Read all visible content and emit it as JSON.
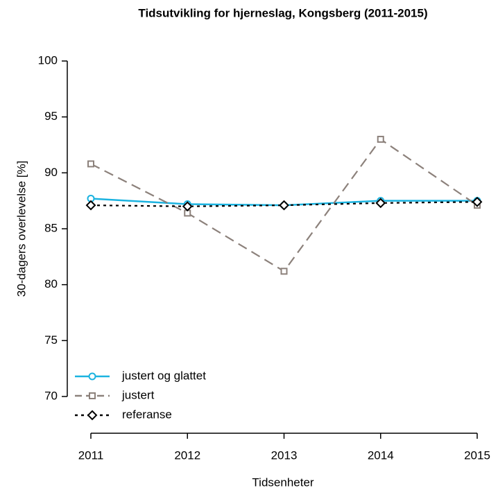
{
  "chart_data": {
    "type": "line",
    "title": "Tidsutvikling for hjerneslag, Kongsberg (2011-2015)",
    "x_label": "Tidsenheter",
    "y_label": "30-dagers overlevelse [%]",
    "x": [
      2011,
      2012,
      2013,
      2014,
      2015
    ],
    "xlim": [
      2011,
      2015
    ],
    "xticks": [
      2011,
      2012,
      2013,
      2014,
      2015
    ],
    "ylim": [
      70,
      100
    ],
    "yticks": [
      70,
      75,
      80,
      85,
      90,
      95,
      100
    ],
    "legend": "bottom-left",
    "series": [
      {
        "name": "justert og glattet",
        "color": "#1bb3e0",
        "marker": "circle",
        "line_style": "solid",
        "values": [
          87.7,
          87.2,
          87.1,
          87.5,
          87.5
        ]
      },
      {
        "name": "justert",
        "color": "#8c817b",
        "marker": "square",
        "line_style": "dashed",
        "values": [
          90.8,
          86.4,
          81.2,
          93.0,
          87.1
        ]
      },
      {
        "name": "referanse",
        "color": "#000000",
        "marker": "diamond",
        "line_style": "dotted",
        "values": [
          87.1,
          87.0,
          87.1,
          87.3,
          87.4
        ]
      }
    ]
  }
}
